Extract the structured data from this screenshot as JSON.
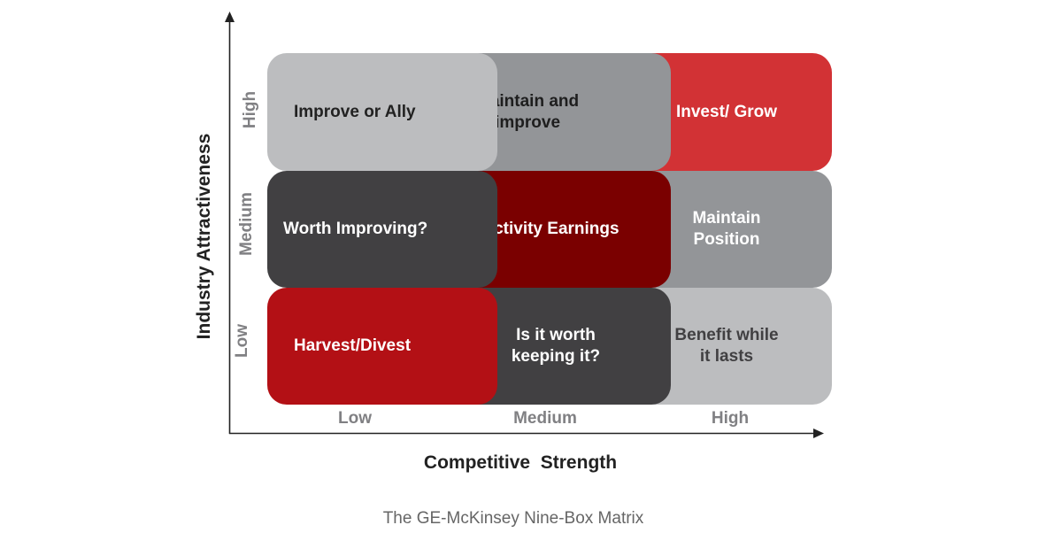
{
  "matrix": {
    "boxes": [
      {
        "label": "Improve or Ally",
        "bg": "#bcbdbf",
        "fg": "#222222"
      },
      {
        "label": "Maintain and\nimprove",
        "bg": "#939598",
        "fg": "#1e1e1e"
      },
      {
        "label": "Invest/ Grow",
        "bg": "#d23235",
        "fg": "#ffffff"
      },
      {
        "label": "Worth Improving?",
        "bg": "#414042",
        "fg": "#ffffff"
      },
      {
        "label": "Selectivity Earnings",
        "bg": "#7a0000",
        "fg": "#ffffff"
      },
      {
        "label": "Maintain\nPosition",
        "bg": "#939598",
        "fg": "#ffffff"
      },
      {
        "label": "Harvest/Divest",
        "bg": "#b31015",
        "fg": "#ffffff"
      },
      {
        "label": "Is it worth\nkeeping it?",
        "bg": "#414042",
        "fg": "#ffffff"
      },
      {
        "label": "Benefit while\nit lasts",
        "bg": "#bcbdbf",
        "fg": "#414042"
      }
    ],
    "row_labels": {
      "high": "High",
      "medium": "Medium",
      "low": "Low"
    },
    "col_labels": {
      "low": "Low",
      "medium": "Medium",
      "high": "High"
    },
    "y_axis_title": "Industry Attractiveness",
    "x_axis_title": "Competitive  Strength",
    "caption": "The GE-McKinsey Nine-Box Matrix"
  }
}
